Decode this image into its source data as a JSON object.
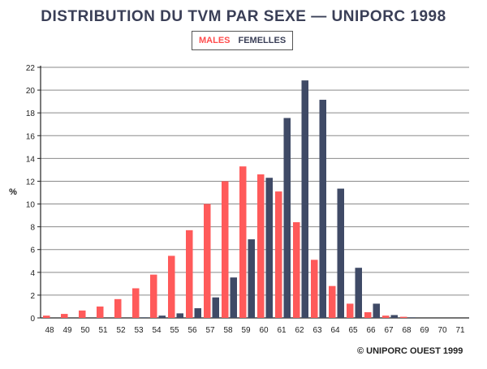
{
  "chart_data": {
    "type": "bar",
    "title": "DISTRIBUTION DU TVM PAR SEXE — UNIPORC 1998",
    "ylabel": "%",
    "xlabel": "",
    "ylim": [
      0,
      22
    ],
    "yticks": [
      0,
      2,
      4,
      6,
      8,
      10,
      12,
      14,
      16,
      18,
      20,
      22
    ],
    "grid": true,
    "legend_placement": "top-center",
    "categories": [
      "48",
      "49",
      "50",
      "51",
      "52",
      "53",
      "54",
      "55",
      "56",
      "57",
      "58",
      "59",
      "60",
      "61",
      "62",
      "63",
      "64",
      "65",
      "66",
      "67",
      "68",
      "69",
      "70",
      "71"
    ],
    "series": [
      {
        "name": "MALES",
        "color": "#ff5a5a",
        "values": [
          0.2,
          0.35,
          0.65,
          1.0,
          1.65,
          2.6,
          3.8,
          5.45,
          7.7,
          10.0,
          12.0,
          13.3,
          12.6,
          11.1,
          8.4,
          5.1,
          2.8,
          1.25,
          0.5,
          0.2,
          0.1,
          0,
          0,
          0
        ]
      },
      {
        "name": "FEMELLES",
        "color": "#3f4a66",
        "values": [
          0,
          0,
          0,
          0,
          0,
          0.05,
          0.2,
          0.4,
          0.85,
          1.8,
          3.55,
          6.9,
          12.3,
          17.55,
          20.85,
          19.15,
          11.35,
          4.4,
          1.25,
          0.25,
          0.05,
          0,
          0,
          0
        ]
      }
    ]
  },
  "legend": {
    "males": "MALES",
    "females": "FEMELLES"
  },
  "footer": {
    "copyright": "© UNIPORC OUEST 1999"
  },
  "colors": {
    "grid": "#8a8a8a",
    "axis": "#222222",
    "text": "#3a3f57"
  }
}
